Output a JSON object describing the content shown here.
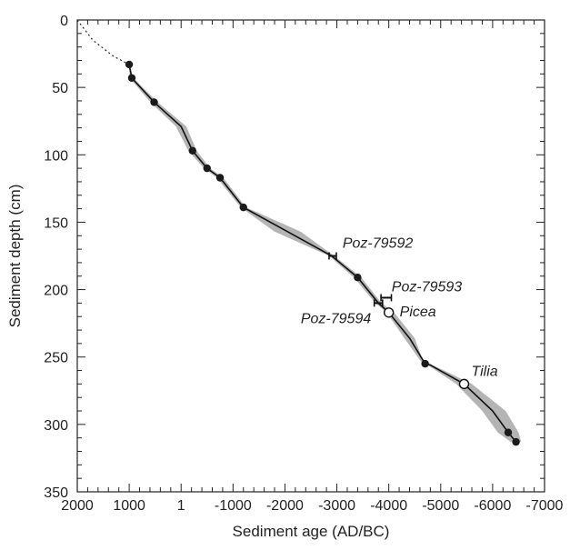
{
  "chart_data": {
    "type": "scatter",
    "title": "",
    "xlabel": "Sediment age (AD/BC)",
    "ylabel": "Sediment depth (cm)",
    "x_axis": {
      "range": [
        2000,
        -7000
      ],
      "ticks": [
        2000,
        1000,
        1,
        -1000,
        -2000,
        -3000,
        -4000,
        -5000,
        -6000,
        -7000
      ],
      "tick_labels": [
        "2000",
        "1000",
        "1",
        "-1000",
        "-2000",
        "-3000",
        "-4000",
        "-5000",
        "-6000",
        "-7000"
      ]
    },
    "y_axis": {
      "range": [
        0,
        350
      ],
      "inverted": true,
      "ticks": [
        0,
        50,
        100,
        150,
        200,
        250,
        300,
        350
      ],
      "tick_labels": [
        "0",
        "50",
        "100",
        "150",
        "200",
        "250",
        "300",
        "350"
      ]
    },
    "grid": false,
    "extrapolation": {
      "style": "dotted",
      "points": [
        [
          2000,
          0
        ],
        [
          1700,
          15
        ],
        [
          1300,
          27
        ],
        [
          1000,
          33
        ]
      ]
    },
    "age_depth_model": [
      [
        1000,
        33
      ],
      [
        950,
        43
      ],
      [
        520,
        61
      ],
      [
        0,
        79
      ],
      [
        -220,
        97
      ],
      [
        -500,
        110
      ],
      [
        -750,
        117
      ],
      [
        -1200,
        139
      ],
      [
        -2050,
        157
      ],
      [
        -2900,
        175
      ],
      [
        -3400,
        191
      ],
      [
        -3800,
        210
      ],
      [
        -4000,
        217
      ],
      [
        -4400,
        236
      ],
      [
        -4700,
        255
      ],
      [
        -4800,
        256
      ],
      [
        -5450,
        270
      ],
      [
        -6000,
        290
      ],
      [
        -6300,
        306
      ],
      [
        -6450,
        313
      ]
    ],
    "uncertainty_envelope": {
      "color": "#b4b4b4",
      "upper": [
        [
          1000,
          33
        ],
        [
          920,
          43
        ],
        [
          450,
          61
        ],
        [
          -100,
          79
        ],
        [
          -300,
          97
        ],
        [
          -560,
          110
        ],
        [
          -810,
          117
        ],
        [
          -1250,
          139
        ],
        [
          -2300,
          157
        ],
        [
          -2950,
          175
        ],
        [
          -3470,
          191
        ],
        [
          -3860,
          210
        ],
        [
          -4100,
          217
        ],
        [
          -4500,
          236
        ],
        [
          -4650,
          252
        ],
        [
          -4850,
          256
        ],
        [
          -5600,
          270
        ],
        [
          -6250,
          290
        ],
        [
          -6500,
          306
        ],
        [
          -6550,
          313
        ]
      ],
      "lower": [
        [
          1000,
          33
        ],
        [
          990,
          43
        ],
        [
          590,
          61
        ],
        [
          100,
          79
        ],
        [
          -140,
          97
        ],
        [
          -440,
          110
        ],
        [
          -690,
          117
        ],
        [
          -1150,
          139
        ],
        [
          -1800,
          157
        ],
        [
          -2850,
          175
        ],
        [
          -3330,
          191
        ],
        [
          -3740,
          210
        ],
        [
          -3960,
          217
        ],
        [
          -4300,
          236
        ],
        [
          -4650,
          255
        ],
        [
          -4750,
          256
        ],
        [
          -5300,
          270
        ],
        [
          -5800,
          290
        ],
        [
          -6100,
          306
        ],
        [
          -6350,
          313
        ]
      ]
    },
    "dated_points": [
      {
        "x": 1000,
        "y": 33
      },
      {
        "x": 950,
        "y": 43
      },
      {
        "x": 520,
        "y": 61
      },
      {
        "x": -220,
        "y": 97
      },
      {
        "x": -500,
        "y": 110
      },
      {
        "x": -750,
        "y": 117
      },
      {
        "x": -1200,
        "y": 139
      },
      {
        "x": -3400,
        "y": 191
      },
      {
        "x": -4700,
        "y": 255
      },
      {
        "x": -6300,
        "y": 306
      },
      {
        "x": -6450,
        "y": 313
      }
    ],
    "pollen_markers": [
      {
        "label": "Picea",
        "x": -4000,
        "y": 217
      },
      {
        "label": "Tilia",
        "x": -5450,
        "y": 270
      }
    ],
    "radiocarbon_dates": [
      {
        "label": "Poz-79592",
        "x": -2900,
        "y": 175,
        "x_min": -2850,
        "x_max": -2990
      },
      {
        "label": "Poz-79593",
        "x": -3950,
        "y": 206,
        "x_min": -3850,
        "x_max": -4050
      },
      {
        "label": "Poz-79594",
        "x": -3800,
        "y": 210,
        "x_min": -3720,
        "x_max": -3880
      }
    ]
  }
}
